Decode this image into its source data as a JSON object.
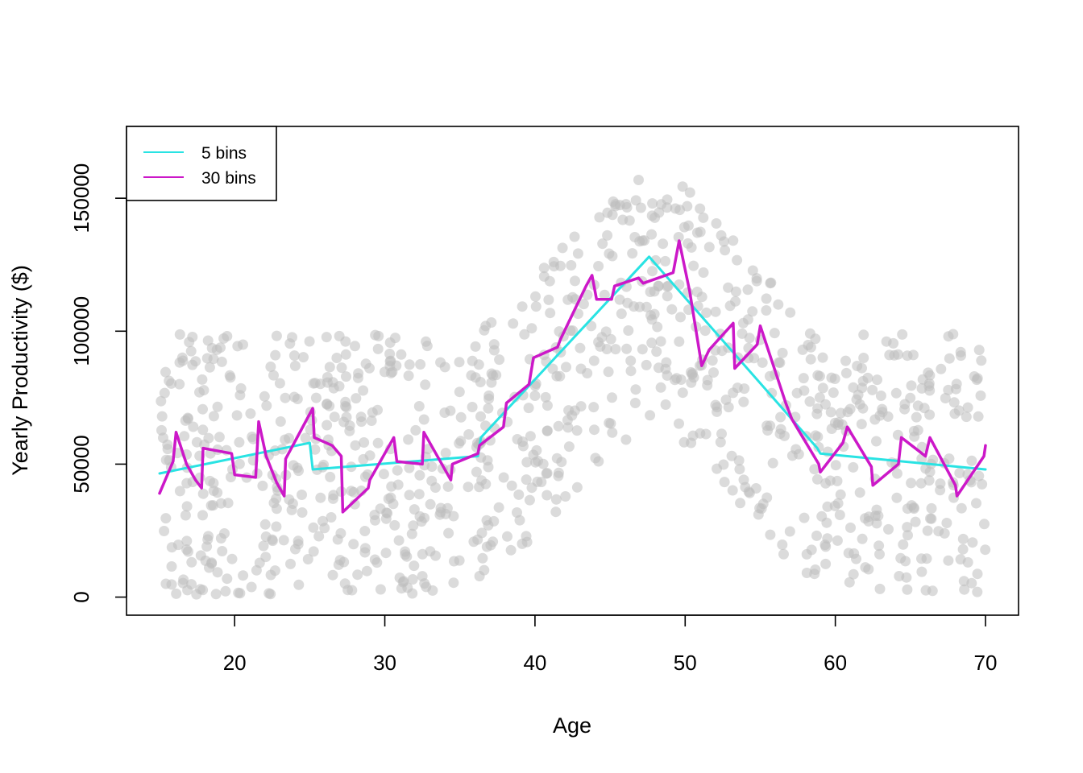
{
  "chart_data": {
    "type": "scatter",
    "title": "",
    "xlabel": "Age",
    "ylabel": "Yearly Productivity ($)",
    "xlim": [
      12.8,
      72.2
    ],
    "ylim": [
      -6800,
      177000
    ],
    "x_ticks": [
      20,
      30,
      40,
      50,
      60,
      70
    ],
    "y_ticks": [
      0,
      50000,
      100000,
      150000
    ],
    "x_tick_labels": [
      "20",
      "30",
      "40",
      "50",
      "60",
      "70"
    ],
    "y_tick_labels": [
      "0",
      "50000",
      "100000",
      "150000"
    ],
    "grid": false,
    "legend": {
      "position": "top-left",
      "entries": [
        {
          "label": "5 bins",
          "color": "#29E3E3"
        },
        {
          "label": "30 bins",
          "color": "#CC18C8"
        }
      ]
    },
    "scatter": {
      "color": "#BEBEBE",
      "x_range": [
        15,
        70
      ],
      "points_per_unit_age": 18,
      "note_shape": "uniform noise band around peak curve"
    },
    "series": [
      {
        "name": "5 bins",
        "color": "#29E3E3",
        "x": [
          15,
          25,
          25.2,
          36.2,
          36.4,
          47.6,
          58.8,
          59,
          70
        ],
        "y": [
          46500,
          58000,
          48000,
          53000,
          60000,
          128000,
          56000,
          54000,
          48000
        ]
      },
      {
        "name": "30 bins",
        "color": "#CC18C8",
        "x": [
          15,
          15.9,
          16.1,
          16.8,
          17.4,
          17.8,
          17.9,
          19.8,
          20,
          21.4,
          21.6,
          22.1,
          22.8,
          23.3,
          23.4,
          25.2,
          25.3,
          26.5,
          27.1,
          27.2,
          28.9,
          29,
          30.6,
          30.8,
          32.5,
          32.6,
          34.4,
          34.5,
          36.2,
          36.3,
          37.9,
          38.1,
          39.6,
          39.9,
          41.5,
          41.7,
          43.4,
          43.8,
          44.1,
          45.1,
          45.3,
          46.9,
          47.2,
          49.2,
          49.6,
          50.3,
          51.1,
          51.6,
          53.2,
          53.3,
          54.8,
          55,
          56.7,
          57.1,
          58.9,
          59,
          60.5,
          60.8,
          62.4,
          62.5,
          64.2,
          64.4,
          66,
          66.3,
          68,
          68.1,
          69.9,
          70
        ],
        "y": [
          39000,
          51000,
          62000,
          50000,
          44000,
          41000,
          56000,
          54000,
          46000,
          45000,
          66000,
          53000,
          43000,
          38000,
          52000,
          71000,
          60000,
          57000,
          53000,
          32000,
          41000,
          44000,
          60000,
          51000,
          50000,
          62000,
          44000,
          50000,
          54000,
          57000,
          64000,
          73000,
          80000,
          90000,
          94000,
          97000,
          117000,
          121000,
          112000,
          112000,
          117000,
          120000,
          118000,
          122000,
          134000,
          115000,
          87000,
          93000,
          103000,
          86000,
          95000,
          102000,
          73000,
          67000,
          50000,
          47000,
          58000,
          64000,
          49000,
          42000,
          50000,
          60000,
          53000,
          60000,
          42000,
          38000,
          53000,
          57000
        ]
      }
    ]
  }
}
